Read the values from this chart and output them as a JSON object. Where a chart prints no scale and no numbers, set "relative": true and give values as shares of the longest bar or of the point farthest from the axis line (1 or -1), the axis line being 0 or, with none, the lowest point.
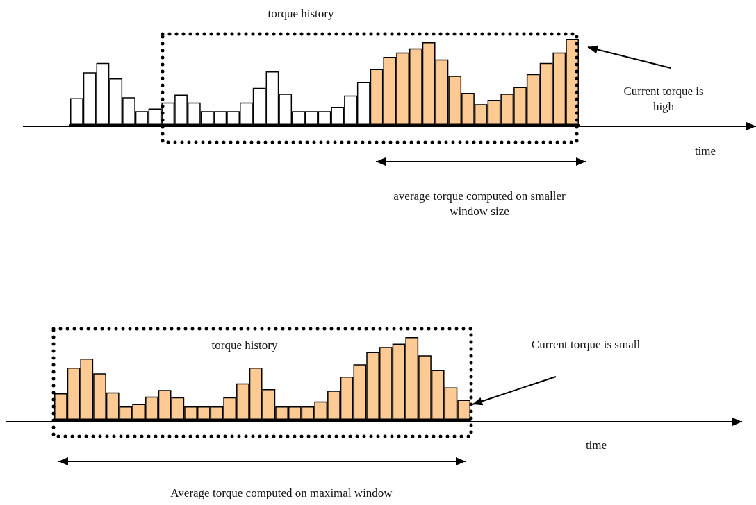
{
  "chart_data": [
    {
      "type": "bar",
      "relative": true,
      "categories": [
        null,
        null,
        null,
        null,
        null,
        null,
        null,
        null,
        null,
        null,
        null,
        null,
        null,
        null,
        null,
        null,
        null,
        null,
        null,
        null,
        null,
        null,
        null,
        null,
        null,
        null,
        null,
        null,
        null,
        null,
        null,
        null,
        null,
        null,
        null,
        null,
        null,
        null,
        null
      ],
      "values": [
        0.31,
        0.61,
        0.72,
        0.54,
        0.32,
        0.16,
        0.19,
        0.26,
        0.35,
        0.26,
        0.16,
        0.16,
        0.16,
        0.26,
        0.43,
        0.62,
        0.36,
        0.16,
        0.16,
        0.16,
        0.21,
        0.34,
        0.5,
        0.65,
        0.79,
        0.84,
        0.89,
        0.96,
        0.76,
        0.57,
        0.37,
        0.24,
        0.29,
        0.36,
        0.44,
        0.59,
        0.72,
        0.84,
        1
      ],
      "colors": [
        "#ffffff",
        "#ffffff",
        "#ffffff",
        "#ffffff",
        "#ffffff",
        "#ffffff",
        "#ffffff",
        "#ffffff",
        "#ffffff",
        "#ffffff",
        "#ffffff",
        "#ffffff",
        "#ffffff",
        "#ffffff",
        "#ffffff",
        "#ffffff",
        "#ffffff",
        "#ffffff",
        "#ffffff",
        "#ffffff",
        "#ffffff",
        "#ffffff",
        "#ffffff",
        "#fdca93",
        "#fdca93",
        "#fdca93",
        "#fdca93",
        "#fdca93",
        "#fdca93",
        "#fdca93",
        "#fdca93",
        "#fdca93",
        "#fdca93",
        "#fdca93",
        "#fdca93",
        "#fdca93",
        "#fdca93",
        "#fdca93",
        "#fdca93"
      ],
      "annotations": [
        "torque history",
        "Current torque is high",
        "average torque computed on smaller window size",
        "time"
      ]
    },
    {
      "type": "bar",
      "relative": true,
      "categories": [
        null,
        null,
        null,
        null,
        null,
        null,
        null,
        null,
        null,
        null,
        null,
        null,
        null,
        null,
        null,
        null,
        null,
        null,
        null,
        null,
        null,
        null,
        null,
        null,
        null,
        null,
        null,
        null,
        null,
        null,
        null,
        null
      ],
      "values": [
        0.32,
        0.63,
        0.74,
        0.56,
        0.33,
        0.16,
        0.19,
        0.28,
        0.36,
        0.27,
        0.16,
        0.16,
        0.16,
        0.27,
        0.44,
        0.63,
        0.37,
        0.16,
        0.16,
        0.16,
        0.22,
        0.35,
        0.52,
        0.67,
        0.82,
        0.88,
        0.92,
        1,
        0.78,
        0.6,
        0.39,
        0.24
      ],
      "color": "#fdca93",
      "annotations": [
        "torque history",
        "Current torque is small",
        "Average torque computed on maximal window",
        "time"
      ]
    }
  ]
}
